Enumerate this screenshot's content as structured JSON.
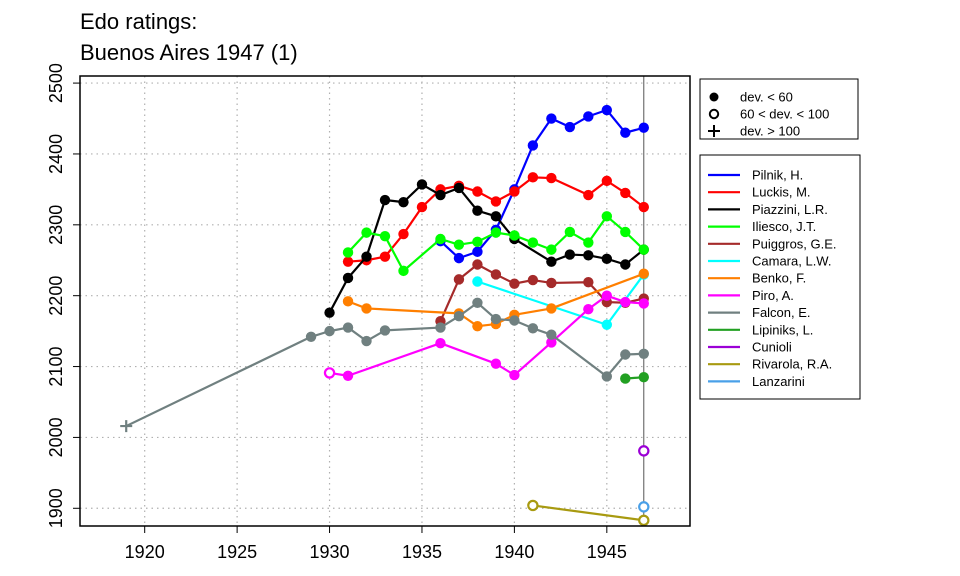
{
  "chart_data": {
    "type": "line",
    "title_lines": [
      "Edo ratings:",
      "Buenos Aires 1947 (1)"
    ],
    "xlabel": "",
    "ylabel": "",
    "xlim": [
      1916.5,
      1949.5
    ],
    "ylim": [
      1875,
      2510
    ],
    "x_ticks": [
      1920,
      1925,
      1930,
      1935,
      1940,
      1945
    ],
    "y_ticks": [
      1900,
      2000,
      2100,
      2200,
      2300,
      2400,
      2500
    ],
    "grid": "dotted",
    "event_line_x": 1947,
    "marker_legend": [
      {
        "symbol": "filled-circle",
        "label": "dev. < 60"
      },
      {
        "symbol": "open-circle",
        "label": "60 < dev. < 100"
      },
      {
        "symbol": "plus",
        "label": "dev. > 100"
      }
    ],
    "series": [
      {
        "name": "Pilnik, H.",
        "color": "#0000ff",
        "points": [
          [
            1936,
            2277,
            "f"
          ],
          [
            1937,
            2253,
            "f"
          ],
          [
            1938,
            2262,
            "f"
          ],
          [
            1939,
            2293,
            "f"
          ],
          [
            1940,
            2350,
            "f"
          ],
          [
            1941,
            2412,
            "f"
          ],
          [
            1942,
            2450,
            "f"
          ],
          [
            1943,
            2438,
            "f"
          ],
          [
            1944,
            2453,
            "f"
          ],
          [
            1945,
            2462,
            "f"
          ],
          [
            1946,
            2430,
            "f"
          ],
          [
            1947,
            2437,
            "f"
          ]
        ]
      },
      {
        "name": "Luckis, M.",
        "color": "#ff0000",
        "points": [
          [
            1931,
            2248,
            "f"
          ],
          [
            1932,
            2250,
            "f"
          ],
          [
            1933,
            2255,
            "f"
          ],
          [
            1934,
            2287,
            "f"
          ],
          [
            1935,
            2325,
            "f"
          ],
          [
            1936,
            2350,
            "f"
          ],
          [
            1937,
            2355,
            "f"
          ],
          [
            1938,
            2347,
            "f"
          ],
          [
            1939,
            2333,
            "f"
          ],
          [
            1940,
            2347,
            "f"
          ],
          [
            1941,
            2367,
            "f"
          ],
          [
            1942,
            2366,
            "f"
          ],
          [
            1944,
            2342,
            "f"
          ],
          [
            1945,
            2362,
            "f"
          ],
          [
            1946,
            2345,
            "f"
          ],
          [
            1947,
            2325,
            "f"
          ]
        ]
      },
      {
        "name": "Piazzini, L.R.",
        "color": "#000000",
        "points": [
          [
            1930,
            2176,
            "f"
          ],
          [
            1931,
            2225,
            "f"
          ],
          [
            1932,
            2255,
            "f"
          ],
          [
            1933,
            2335,
            "f"
          ],
          [
            1934,
            2332,
            "f"
          ],
          [
            1935,
            2357,
            "f"
          ],
          [
            1936,
            2342,
            "f"
          ],
          [
            1937,
            2352,
            "f"
          ],
          [
            1938,
            2320,
            "f"
          ],
          [
            1939,
            2312,
            "f"
          ],
          [
            1940,
            2280,
            "f"
          ],
          [
            1942,
            2248,
            "f"
          ],
          [
            1943,
            2258,
            "f"
          ],
          [
            1944,
            2257,
            "f"
          ],
          [
            1945,
            2252,
            "f"
          ],
          [
            1946,
            2244,
            "f"
          ],
          [
            1947,
            2265,
            "f"
          ]
        ]
      },
      {
        "name": "Iliesco, J.T.",
        "color": "#00ff00",
        "points": [
          [
            1931,
            2261,
            "f"
          ],
          [
            1932,
            2289,
            "f"
          ],
          [
            1933,
            2284,
            "f"
          ],
          [
            1934,
            2235,
            "f"
          ],
          [
            1936,
            2280,
            "f"
          ],
          [
            1937,
            2272,
            "f"
          ],
          [
            1938,
            2276,
            "f"
          ],
          [
            1939,
            2289,
            "f"
          ],
          [
            1940,
            2285,
            "f"
          ],
          [
            1941,
            2275,
            "f"
          ],
          [
            1942,
            2265,
            "f"
          ],
          [
            1943,
            2290,
            "f"
          ],
          [
            1944,
            2275,
            "f"
          ],
          [
            1945,
            2312,
            "f"
          ],
          [
            1946,
            2290,
            "f"
          ],
          [
            1947,
            2265,
            "f"
          ]
        ]
      },
      {
        "name": "Puiggros, G.E.",
        "color": "#a52a2a",
        "points": [
          [
            1936,
            2164,
            "f"
          ],
          [
            1937,
            2223,
            "f"
          ],
          [
            1938,
            2244,
            "f"
          ],
          [
            1939,
            2230,
            "f"
          ],
          [
            1940,
            2217,
            "f"
          ],
          [
            1941,
            2222,
            "f"
          ],
          [
            1942,
            2218,
            "f"
          ],
          [
            1944,
            2219,
            "f"
          ],
          [
            1945,
            2191,
            "f"
          ],
          [
            1946,
            2190,
            "f"
          ],
          [
            1947,
            2196,
            "f"
          ]
        ]
      },
      {
        "name": "Camara, L.W.",
        "color": "#00ffff",
        "points": [
          [
            1938,
            2220,
            "f"
          ],
          [
            1945,
            2159,
            "f"
          ],
          [
            1947,
            2230,
            "f"
          ]
        ]
      },
      {
        "name": "Benko, F.",
        "color": "#ff7f00",
        "points": [
          [
            1931,
            2192,
            "f"
          ],
          [
            1932,
            2182,
            "f"
          ],
          [
            1937,
            2175,
            "f"
          ],
          [
            1938,
            2157,
            "f"
          ],
          [
            1939,
            2160,
            "f"
          ],
          [
            1940,
            2173,
            "f"
          ],
          [
            1942,
            2182,
            "f"
          ],
          [
            1947,
            2231,
            "f"
          ]
        ]
      },
      {
        "name": "Piro, A.",
        "color": "#ff00ff",
        "points": [
          [
            1930,
            2091,
            "o"
          ],
          [
            1931,
            2087,
            "f"
          ],
          [
            1936,
            2133,
            "f"
          ],
          [
            1939,
            2104,
            "f"
          ],
          [
            1940,
            2088,
            "f"
          ],
          [
            1942,
            2134,
            "f"
          ],
          [
            1944,
            2181,
            "f"
          ],
          [
            1945,
            2200,
            "f"
          ],
          [
            1946,
            2191,
            "f"
          ],
          [
            1947,
            2189,
            "f"
          ]
        ]
      },
      {
        "name": "Falcon, E.",
        "color": "#708080",
        "points": [
          [
            1919,
            2016,
            "p"
          ],
          [
            1929,
            2142,
            "f"
          ],
          [
            1930,
            2150,
            "f"
          ],
          [
            1931,
            2155,
            "f"
          ],
          [
            1932,
            2136,
            "f"
          ],
          [
            1933,
            2151,
            "f"
          ],
          [
            1936,
            2155,
            "f"
          ],
          [
            1937,
            2171,
            "f"
          ],
          [
            1938,
            2190,
            "f"
          ],
          [
            1939,
            2167,
            "f"
          ],
          [
            1940,
            2165,
            "f"
          ],
          [
            1941,
            2154,
            "f"
          ],
          [
            1942,
            2145,
            "f"
          ],
          [
            1945,
            2086,
            "f"
          ],
          [
            1946,
            2117,
            "f"
          ],
          [
            1947,
            2118,
            "f"
          ]
        ]
      },
      {
        "name": "Lipiniks, L.",
        "color": "#22a022",
        "points": [
          [
            1946,
            2083,
            "f"
          ],
          [
            1947,
            2085,
            "f"
          ]
        ]
      },
      {
        "name": "Cunioli",
        "color": "#9b00d6",
        "points": [
          [
            1947,
            1981,
            "o"
          ]
        ]
      },
      {
        "name": "Rivarola, R.A.",
        "color": "#a89a10",
        "points": [
          [
            1941,
            1904,
            "o"
          ],
          [
            1947,
            1883,
            "o"
          ]
        ]
      },
      {
        "name": "Lanzarini",
        "color": "#4aa0e8",
        "points": [
          [
            1947,
            1902,
            "o"
          ]
        ]
      }
    ]
  }
}
